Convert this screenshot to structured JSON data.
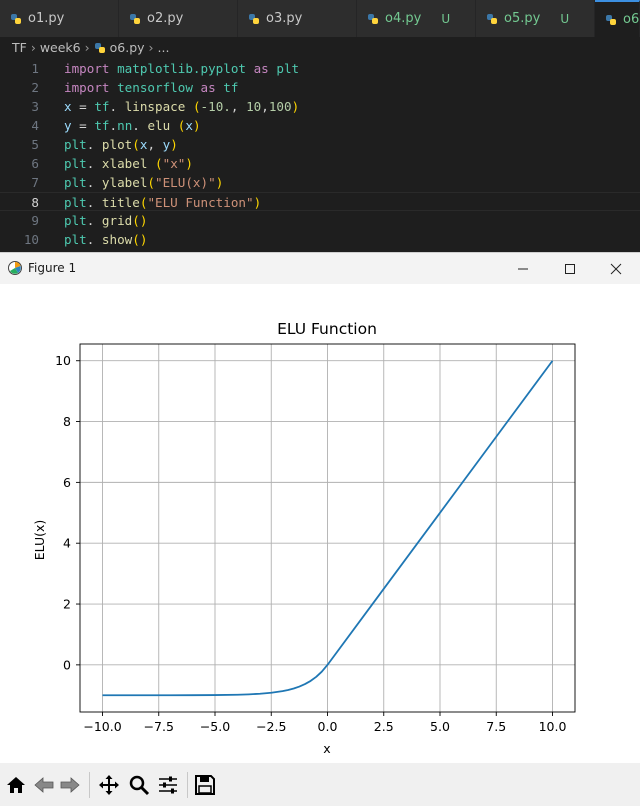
{
  "tabs": [
    {
      "label": "o1.py",
      "badge": ""
    },
    {
      "label": "o2.py",
      "badge": ""
    },
    {
      "label": "o3.py",
      "badge": ""
    },
    {
      "label": "o4.py",
      "badge": "U"
    },
    {
      "label": "o5.py",
      "badge": "U"
    },
    {
      "label": "o6",
      "badge": ""
    }
  ],
  "breadcrumb": {
    "root": "TF",
    "folder": "week6",
    "file": "o6.py",
    "more": "..."
  },
  "editor": {
    "line_numbers": [
      "1",
      "2",
      "3",
      "4",
      "5",
      "6",
      "7",
      "8",
      "9",
      "10"
    ],
    "current_line": "8",
    "lines": [
      [
        [
          "kw",
          "import"
        ],
        [
          "d",
          " "
        ],
        [
          "mod",
          "matplotlib.pyplot"
        ],
        [
          "d",
          " "
        ],
        [
          "kw",
          "as"
        ],
        [
          "d",
          " "
        ],
        [
          "mod",
          "plt"
        ]
      ],
      [
        [
          "kw",
          "import"
        ],
        [
          "d",
          " "
        ],
        [
          "mod",
          "tensorflow"
        ],
        [
          "d",
          " "
        ],
        [
          "kw",
          "as"
        ],
        [
          "d",
          " "
        ],
        [
          "mod",
          "tf"
        ]
      ],
      [
        [
          "var",
          "x"
        ],
        [
          "d",
          " = "
        ],
        [
          "mod",
          "tf"
        ],
        [
          "d",
          ". "
        ],
        [
          "fn",
          "linspace"
        ],
        [
          "d",
          " "
        ],
        [
          "p1",
          "("
        ],
        [
          "num",
          "-10."
        ],
        [
          "d",
          ", "
        ],
        [
          "num",
          "10"
        ],
        [
          "d",
          ","
        ],
        [
          "num",
          "100"
        ],
        [
          "p1",
          ")"
        ]
      ],
      [
        [
          "var",
          "y"
        ],
        [
          "d",
          " = "
        ],
        [
          "mod",
          "tf"
        ],
        [
          "d",
          "."
        ],
        [
          "mod",
          "nn"
        ],
        [
          "d",
          ". "
        ],
        [
          "fn",
          "elu"
        ],
        [
          "d",
          " "
        ],
        [
          "p1",
          "("
        ],
        [
          "var",
          "x"
        ],
        [
          "p1",
          ")"
        ]
      ],
      [
        [
          "mod",
          "plt"
        ],
        [
          "d",
          ". "
        ],
        [
          "fn",
          "plot"
        ],
        [
          "p1",
          "("
        ],
        [
          "var",
          "x"
        ],
        [
          "d",
          ", "
        ],
        [
          "var",
          "y"
        ],
        [
          "p1",
          ")"
        ]
      ],
      [
        [
          "mod",
          "plt"
        ],
        [
          "d",
          ". "
        ],
        [
          "fn",
          "xlabel"
        ],
        [
          "d",
          " "
        ],
        [
          "p1",
          "("
        ],
        [
          "str",
          "\"x\""
        ],
        [
          "p1",
          ")"
        ]
      ],
      [
        [
          "mod",
          "plt"
        ],
        [
          "d",
          ". "
        ],
        [
          "fn",
          "ylabel"
        ],
        [
          "p1",
          "("
        ],
        [
          "str",
          "\"ELU(x)\""
        ],
        [
          "p1",
          ")"
        ]
      ],
      [
        [
          "mod",
          "plt"
        ],
        [
          "d",
          ". "
        ],
        [
          "fn",
          "title"
        ],
        [
          "p1",
          "("
        ],
        [
          "str",
          "\"ELU Function\""
        ],
        [
          "p1",
          ")"
        ]
      ],
      [
        [
          "mod",
          "plt"
        ],
        [
          "d",
          ". "
        ],
        [
          "fn",
          "grid"
        ],
        [
          "p1",
          "()"
        ]
      ],
      [
        [
          "mod",
          "plt"
        ],
        [
          "d",
          ". "
        ],
        [
          "fn",
          "show"
        ],
        [
          "p1",
          "()"
        ]
      ]
    ]
  },
  "figure_window": {
    "title": "Figure 1"
  },
  "toolbar_icons": [
    "home-icon",
    "back-icon",
    "forward-icon",
    "pan-icon",
    "zoom-icon",
    "configure-subplots-icon",
    "save-icon"
  ],
  "colors": {
    "line": "#1f77b4",
    "grid": "#b0b0b0",
    "tab_accent": "#3c8fe0",
    "untracked": "#73c991"
  },
  "chart_data": {
    "type": "line",
    "title": "ELU Function",
    "xlabel": "x",
    "ylabel": "ELU(x)",
    "xlim": [
      -11.0,
      11.0
    ],
    "ylim": [
      -1.55,
      10.55
    ],
    "xticks": [
      -10.0,
      -7.5,
      -5.0,
      -2.5,
      0.0,
      2.5,
      5.0,
      7.5,
      10.0
    ],
    "xtick_labels": [
      "−10.0",
      "−7.5",
      "−5.0",
      "−2.5",
      "0.0",
      "2.5",
      "5.0",
      "7.5",
      "10.0"
    ],
    "yticks": [
      0,
      2,
      4,
      6,
      8,
      10
    ],
    "ytick_labels": [
      "0",
      "2",
      "4",
      "6",
      "8",
      "10"
    ],
    "grid": true,
    "series": [
      {
        "x": [
          -10.0,
          -9.0,
          -8.0,
          -7.0,
          -6.0,
          -5.0,
          -4.0,
          -3.5,
          -3.0,
          -2.5,
          -2.0,
          -1.75,
          -1.5,
          -1.25,
          -1.0,
          -0.75,
          -0.5,
          -0.25,
          0.0,
          2.5,
          5.0,
          7.5,
          10.0
        ],
        "y": [
          -1.0,
          -0.9999,
          -0.9997,
          -0.9991,
          -0.9975,
          -0.9933,
          -0.9817,
          -0.9698,
          -0.9502,
          -0.9179,
          -0.8647,
          -0.8262,
          -0.7769,
          -0.7135,
          -0.6321,
          -0.5276,
          -0.3935,
          -0.2212,
          0.0,
          2.5,
          5.0,
          7.5,
          10.0
        ]
      }
    ]
  }
}
